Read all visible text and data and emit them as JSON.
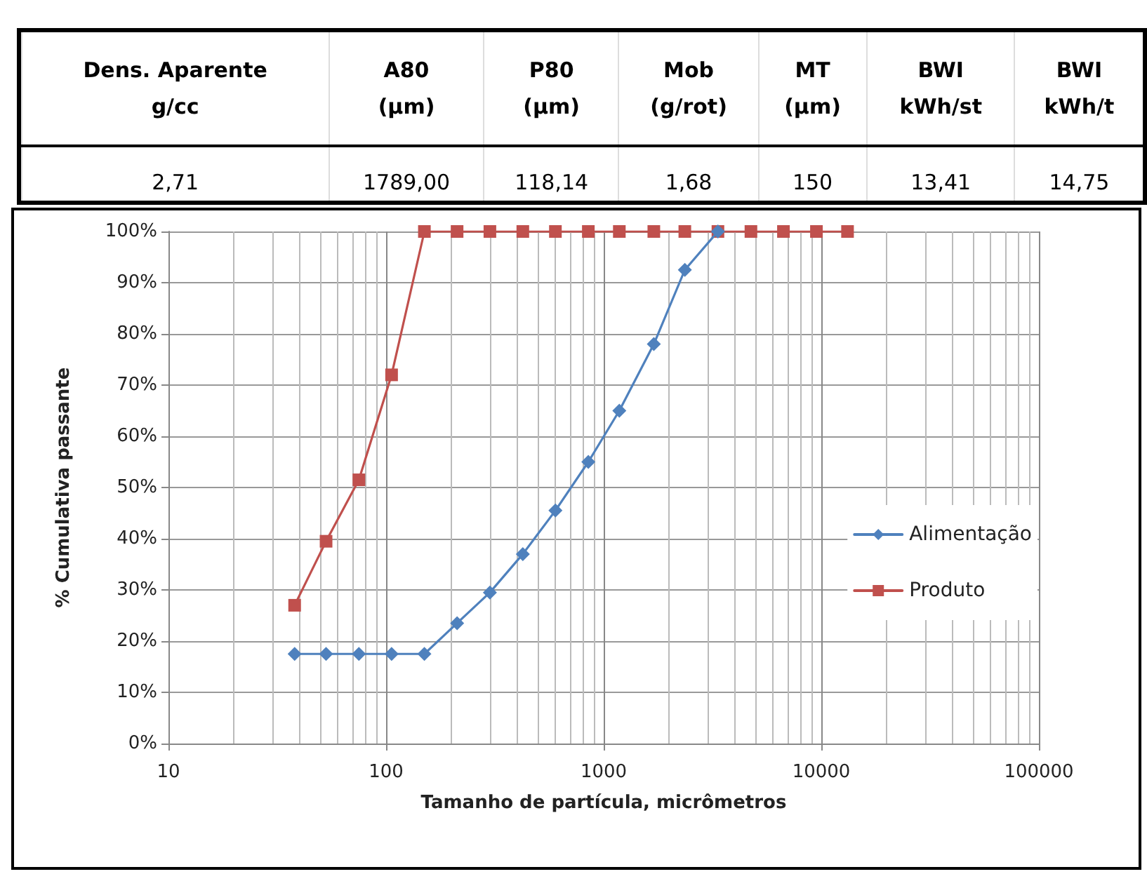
{
  "chart_data": [
    {
      "type": "other",
      "categories": [
        "Dens. Aparente\ng/cc",
        "A80\n(µm)",
        "P80\n(µm)",
        "Mob\n(g/rot)",
        "MT\n(µm)",
        "BWI\nkWh/st",
        "BWI\nkWh/t"
      ],
      "value_labels": [
        "2,71",
        "1789,00",
        "118,14",
        "1,68",
        "150",
        "13,41",
        "14,75"
      ]
    },
    {
      "type": "line",
      "xlabel": "Tamanho de partícula, micrômetros",
      "ylabel": "% Cumulativa passante",
      "log": "x",
      "xlim": [
        10,
        100000
      ],
      "xticks": [
        10,
        100,
        1000,
        10000,
        100000
      ],
      "ylim": [
        0,
        100
      ],
      "yticks": [
        {
          "value": 0,
          "label": "0%"
        },
        {
          "value": 10,
          "label": "10%"
        },
        {
          "value": 20,
          "label": "20%"
        },
        {
          "value": 30,
          "label": "30%"
        },
        {
          "value": 40,
          "label": "40%"
        },
        {
          "value": 50,
          "label": "50%"
        },
        {
          "value": 60,
          "label": "60%"
        },
        {
          "value": 70,
          "label": "70%"
        },
        {
          "value": 80,
          "label": "80%"
        },
        {
          "value": 90,
          "label": "90%"
        },
        {
          "value": 100,
          "label": "100%"
        }
      ],
      "grid": true,
      "legend": "right",
      "line_style": "solid",
      "series": [
        {
          "name": "Alimentação",
          "color": "#4f81bd",
          "marker": "diamond",
          "x": [
            38,
            53,
            75,
            106,
            150,
            212,
            300,
            425,
            600,
            850,
            1180,
            1700,
            2360,
            3350
          ],
          "values": [
            17.5,
            17.5,
            17.5,
            17.5,
            17.5,
            23.5,
            29.5,
            37,
            45.5,
            55,
            65,
            78,
            92.5,
            100
          ]
        },
        {
          "name": "Produto",
          "color": "#c0504d",
          "marker": "square",
          "x": [
            38,
            53,
            75,
            106,
            150,
            212,
            300,
            425,
            600,
            850,
            1180,
            1700,
            2360,
            3350,
            4750,
            6700,
            9500,
            13200
          ],
          "values": [
            27,
            39.5,
            51.5,
            72,
            100,
            100,
            100,
            100,
            100,
            100,
            100,
            100,
            100,
            100,
            100,
            100,
            100,
            100
          ]
        }
      ]
    }
  ]
}
